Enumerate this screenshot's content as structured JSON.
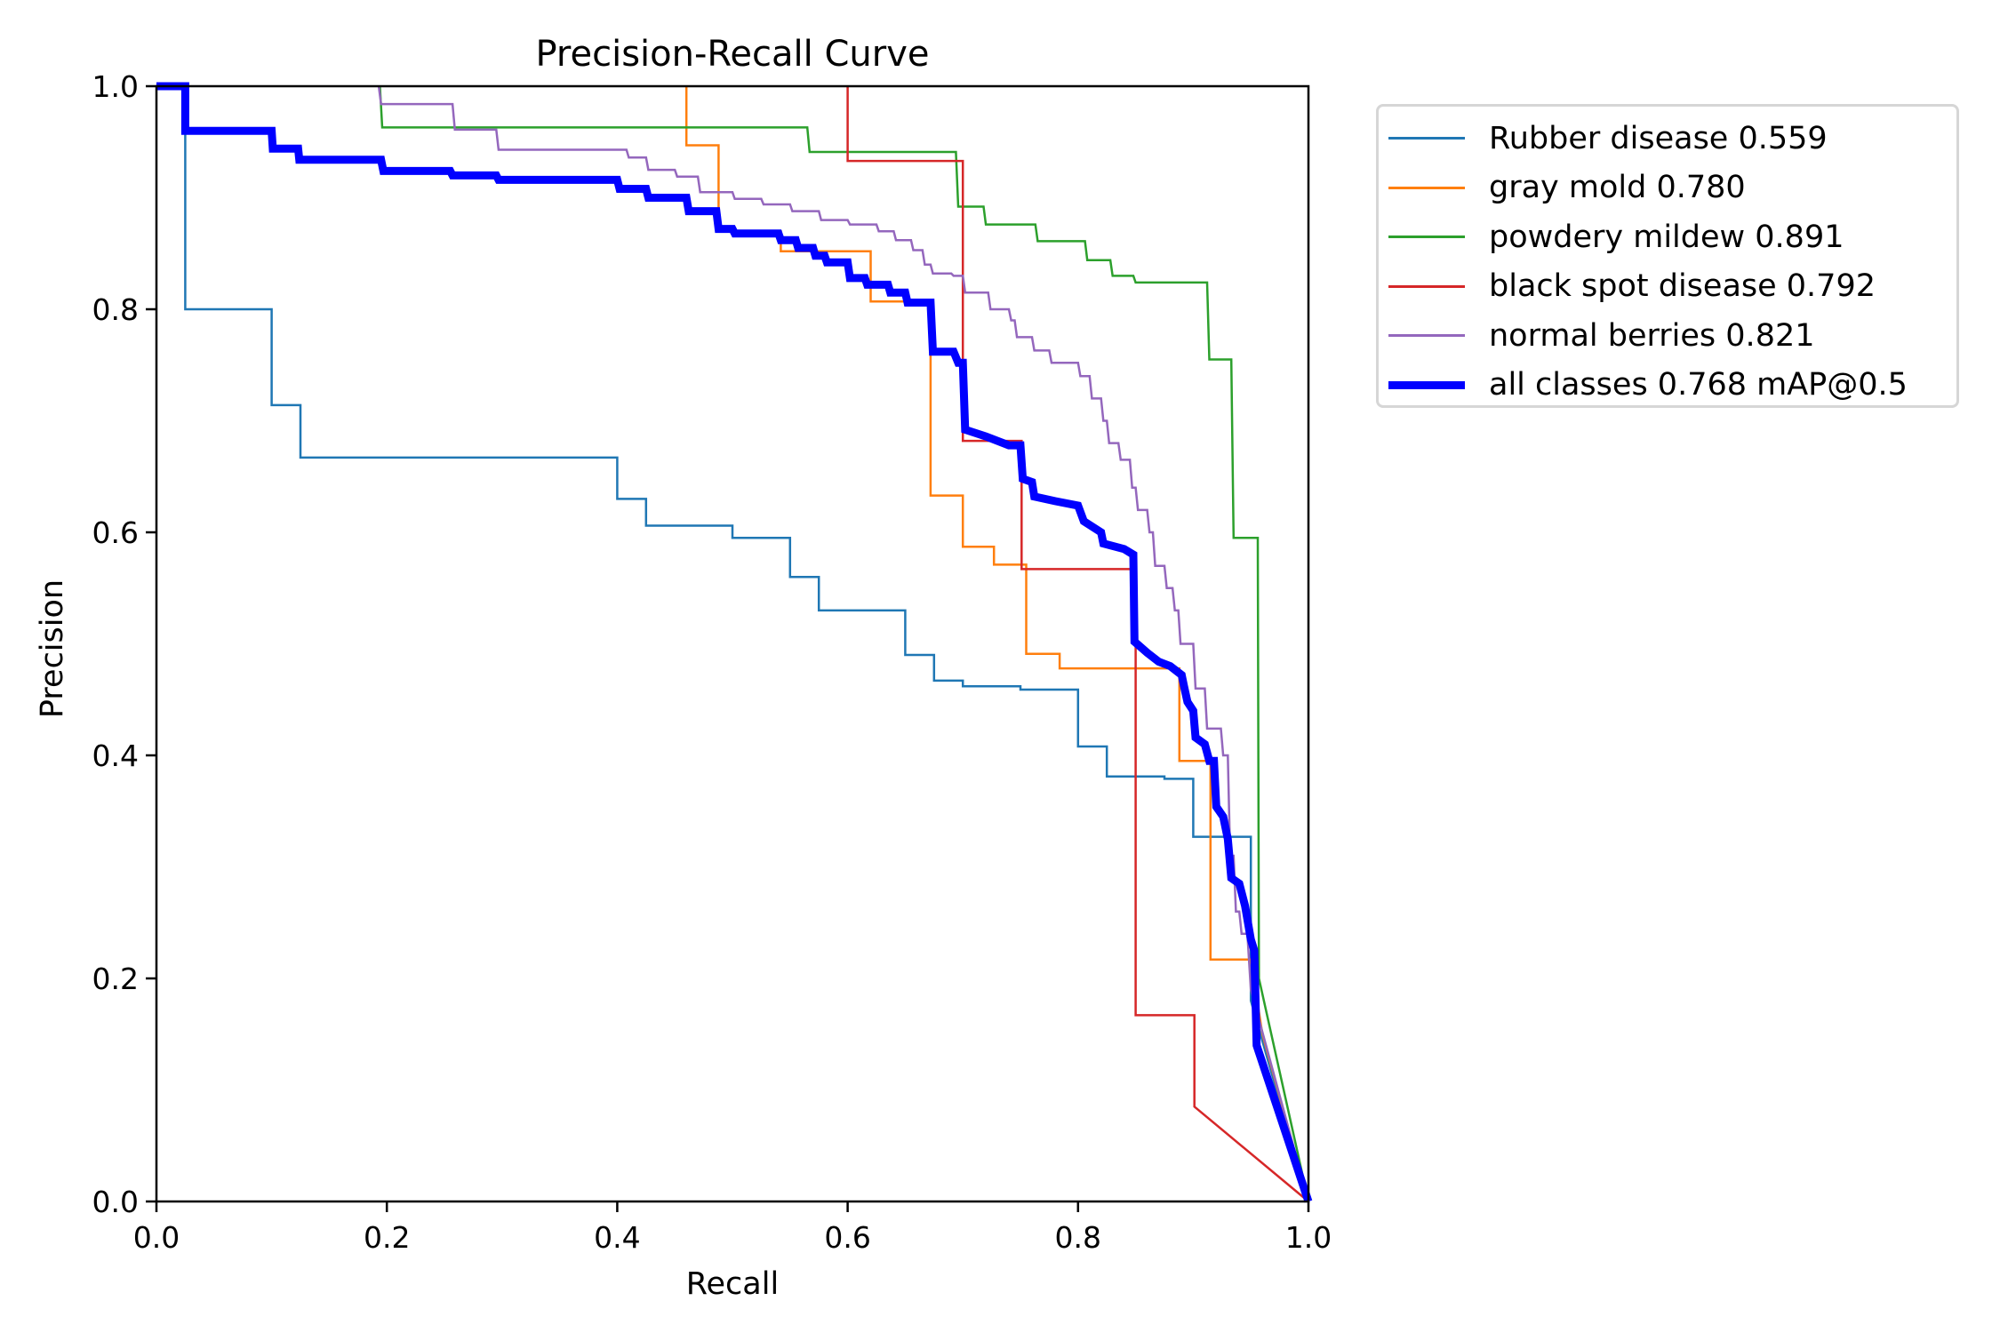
{
  "chart_data": {
    "type": "line",
    "title": "Precision-Recall Curve",
    "xlabel": "Recall",
    "ylabel": "Precision",
    "xlim": [
      0,
      1
    ],
    "ylim": [
      0,
      1
    ],
    "xticks": [
      "0.0",
      "0.2",
      "0.4",
      "0.6",
      "0.8",
      "1.0"
    ],
    "yticks": [
      "0.0",
      "0.2",
      "0.4",
      "0.6",
      "0.8",
      "1.0"
    ],
    "grid": false,
    "legend_position": "outside-top-right",
    "series": [
      {
        "name": "Rubber disease 0.559",
        "color": "#1f77b4",
        "width": "thin",
        "points": [
          [
            0,
            1
          ],
          [
            0.025,
            1
          ],
          [
            0.025,
            0.8
          ],
          [
            0.1,
            0.8
          ],
          [
            0.1,
            0.714
          ],
          [
            0.125,
            0.714
          ],
          [
            0.125,
            0.667
          ],
          [
            0.4,
            0.667
          ],
          [
            0.4,
            0.63
          ],
          [
            0.425,
            0.63
          ],
          [
            0.425,
            0.606
          ],
          [
            0.5,
            0.606
          ],
          [
            0.5,
            0.595
          ],
          [
            0.55,
            0.595
          ],
          [
            0.55,
            0.56
          ],
          [
            0.575,
            0.56
          ],
          [
            0.575,
            0.53
          ],
          [
            0.65,
            0.53
          ],
          [
            0.65,
            0.49
          ],
          [
            0.675,
            0.49
          ],
          [
            0.675,
            0.467
          ],
          [
            0.7,
            0.467
          ],
          [
            0.7,
            0.462
          ],
          [
            0.75,
            0.462
          ],
          [
            0.75,
            0.459
          ],
          [
            0.8,
            0.459
          ],
          [
            0.8,
            0.408
          ],
          [
            0.825,
            0.408
          ],
          [
            0.825,
            0.381
          ],
          [
            0.875,
            0.381
          ],
          [
            0.875,
            0.379
          ],
          [
            0.9,
            0.379
          ],
          [
            0.9,
            0.327
          ],
          [
            0.95,
            0.327
          ],
          [
            0.95,
            0.18
          ],
          [
            1,
            0
          ]
        ]
      },
      {
        "name": "gray mold 0.780",
        "color": "#ff7f0e",
        "width": "thin",
        "points": [
          [
            0.46,
            1
          ],
          [
            0.46,
            0.947
          ],
          [
            0.488,
            0.947
          ],
          [
            0.488,
            0.87
          ],
          [
            0.542,
            0.87
          ],
          [
            0.542,
            0.852
          ],
          [
            0.62,
            0.852
          ],
          [
            0.62,
            0.807
          ],
          [
            0.672,
            0.807
          ],
          [
            0.672,
            0.633
          ],
          [
            0.7,
            0.633
          ],
          [
            0.7,
            0.587
          ],
          [
            0.727,
            0.587
          ],
          [
            0.727,
            0.571
          ],
          [
            0.755,
            0.571
          ],
          [
            0.755,
            0.491
          ],
          [
            0.784,
            0.491
          ],
          [
            0.784,
            0.478
          ],
          [
            0.888,
            0.478
          ],
          [
            0.888,
            0.395
          ],
          [
            0.915,
            0.395
          ],
          [
            0.915,
            0.217
          ],
          [
            0.95,
            0.217
          ],
          [
            0.96,
            0.15
          ],
          [
            1,
            0
          ]
        ]
      },
      {
        "name": "powdery mildew 0.891",
        "color": "#2ca02c",
        "width": "thin",
        "points": [
          [
            0.194,
            1
          ],
          [
            0.196,
            0.963
          ],
          [
            0.565,
            0.963
          ],
          [
            0.567,
            0.941
          ],
          [
            0.694,
            0.941
          ],
          [
            0.696,
            0.892
          ],
          [
            0.718,
            0.892
          ],
          [
            0.72,
            0.876
          ],
          [
            0.763,
            0.876
          ],
          [
            0.765,
            0.861
          ],
          [
            0.806,
            0.861
          ],
          [
            0.808,
            0.844
          ],
          [
            0.828,
            0.844
          ],
          [
            0.83,
            0.83
          ],
          [
            0.848,
            0.83
          ],
          [
            0.85,
            0.824
          ],
          [
            0.912,
            0.824
          ],
          [
            0.914,
            0.755
          ],
          [
            0.933,
            0.755
          ],
          [
            0.935,
            0.595
          ],
          [
            0.956,
            0.595
          ],
          [
            0.957,
            0.2
          ],
          [
            1,
            0
          ]
        ]
      },
      {
        "name": "black spot disease 0.792",
        "color": "#d62728",
        "width": "thin",
        "points": [
          [
            0.6,
            1
          ],
          [
            0.6,
            0.933
          ],
          [
            0.7,
            0.933
          ],
          [
            0.7,
            0.682
          ],
          [
            0.751,
            0.682
          ],
          [
            0.751,
            0.567
          ],
          [
            0.85,
            0.567
          ],
          [
            0.85,
            0.167
          ],
          [
            0.901,
            0.167
          ],
          [
            0.901,
            0.085
          ],
          [
            1,
            0
          ]
        ]
      },
      {
        "name": "normal berries 0.821",
        "color": "#9467bd",
        "width": "thin",
        "points": [
          [
            0.193,
            1
          ],
          [
            0.195,
            0.984
          ],
          [
            0.257,
            0.984
          ],
          [
            0.259,
            0.961
          ],
          [
            0.295,
            0.961
          ],
          [
            0.297,
            0.943
          ],
          [
            0.408,
            0.943
          ],
          [
            0.41,
            0.936
          ],
          [
            0.425,
            0.936
          ],
          [
            0.427,
            0.925
          ],
          [
            0.45,
            0.925
          ],
          [
            0.452,
            0.919
          ],
          [
            0.47,
            0.919
          ],
          [
            0.472,
            0.905
          ],
          [
            0.5,
            0.905
          ],
          [
            0.502,
            0.899
          ],
          [
            0.525,
            0.899
          ],
          [
            0.527,
            0.894
          ],
          [
            0.55,
            0.894
          ],
          [
            0.552,
            0.888
          ],
          [
            0.575,
            0.888
          ],
          [
            0.577,
            0.88
          ],
          [
            0.6,
            0.88
          ],
          [
            0.602,
            0.876
          ],
          [
            0.625,
            0.876
          ],
          [
            0.627,
            0.87
          ],
          [
            0.64,
            0.87
          ],
          [
            0.642,
            0.862
          ],
          [
            0.655,
            0.862
          ],
          [
            0.657,
            0.853
          ],
          [
            0.665,
            0.853
          ],
          [
            0.667,
            0.84
          ],
          [
            0.672,
            0.84
          ],
          [
            0.674,
            0.832
          ],
          [
            0.69,
            0.832
          ],
          [
            0.692,
            0.83
          ],
          [
            0.7,
            0.83
          ],
          [
            0.702,
            0.815
          ],
          [
            0.722,
            0.815
          ],
          [
            0.724,
            0.8
          ],
          [
            0.74,
            0.8
          ],
          [
            0.742,
            0.79
          ],
          [
            0.745,
            0.79
          ],
          [
            0.747,
            0.775
          ],
          [
            0.76,
            0.775
          ],
          [
            0.762,
            0.763
          ],
          [
            0.775,
            0.763
          ],
          [
            0.777,
            0.752
          ],
          [
            0.8,
            0.752
          ],
          [
            0.802,
            0.74
          ],
          [
            0.81,
            0.74
          ],
          [
            0.812,
            0.72
          ],
          [
            0.82,
            0.72
          ],
          [
            0.822,
            0.7
          ],
          [
            0.825,
            0.7
          ],
          [
            0.827,
            0.68
          ],
          [
            0.835,
            0.68
          ],
          [
            0.837,
            0.665
          ],
          [
            0.845,
            0.665
          ],
          [
            0.847,
            0.64
          ],
          [
            0.85,
            0.64
          ],
          [
            0.852,
            0.62
          ],
          [
            0.86,
            0.62
          ],
          [
            0.862,
            0.6
          ],
          [
            0.865,
            0.6
          ],
          [
            0.867,
            0.57
          ],
          [
            0.875,
            0.57
          ],
          [
            0.877,
            0.55
          ],
          [
            0.882,
            0.55
          ],
          [
            0.884,
            0.53
          ],
          [
            0.887,
            0.53
          ],
          [
            0.889,
            0.5
          ],
          [
            0.9,
            0.5
          ],
          [
            0.902,
            0.46
          ],
          [
            0.91,
            0.46
          ],
          [
            0.912,
            0.424
          ],
          [
            0.924,
            0.424
          ],
          [
            0.926,
            0.4
          ],
          [
            0.93,
            0.4
          ],
          [
            0.932,
            0.31
          ],
          [
            0.935,
            0.31
          ],
          [
            0.937,
            0.26
          ],
          [
            0.94,
            0.26
          ],
          [
            0.942,
            0.24
          ],
          [
            0.947,
            0.24
          ],
          [
            0.95,
            0.19
          ],
          [
            1,
            0
          ]
        ]
      },
      {
        "name": "all classes 0.768 mAP@0.5",
        "color": "#0000ff",
        "width": "thick",
        "points": [
          [
            0,
            1
          ],
          [
            0.025,
            1
          ],
          [
            0.025,
            0.96
          ],
          [
            0.1,
            0.96
          ],
          [
            0.101,
            0.944
          ],
          [
            0.123,
            0.944
          ],
          [
            0.124,
            0.934
          ],
          [
            0.195,
            0.934
          ],
          [
            0.197,
            0.924
          ],
          [
            0.255,
            0.924
          ],
          [
            0.257,
            0.92
          ],
          [
            0.295,
            0.92
          ],
          [
            0.297,
            0.916
          ],
          [
            0.4,
            0.916
          ],
          [
            0.402,
            0.908
          ],
          [
            0.425,
            0.908
          ],
          [
            0.427,
            0.9
          ],
          [
            0.46,
            0.9
          ],
          [
            0.462,
            0.888
          ],
          [
            0.486,
            0.888
          ],
          [
            0.488,
            0.872
          ],
          [
            0.5,
            0.872
          ],
          [
            0.502,
            0.868
          ],
          [
            0.54,
            0.868
          ],
          [
            0.542,
            0.862
          ],
          [
            0.555,
            0.862
          ],
          [
            0.557,
            0.855
          ],
          [
            0.57,
            0.855
          ],
          [
            0.572,
            0.848
          ],
          [
            0.58,
            0.848
          ],
          [
            0.582,
            0.842
          ],
          [
            0.6,
            0.842
          ],
          [
            0.602,
            0.828
          ],
          [
            0.615,
            0.828
          ],
          [
            0.617,
            0.822
          ],
          [
            0.635,
            0.822
          ],
          [
            0.637,
            0.815
          ],
          [
            0.65,
            0.815
          ],
          [
            0.652,
            0.806
          ],
          [
            0.672,
            0.806
          ],
          [
            0.674,
            0.762
          ],
          [
            0.692,
            0.762
          ],
          [
            0.696,
            0.752
          ],
          [
            0.7,
            0.752
          ],
          [
            0.702,
            0.692
          ],
          [
            0.72,
            0.686
          ],
          [
            0.74,
            0.678
          ],
          [
            0.75,
            0.678
          ],
          [
            0.752,
            0.648
          ],
          [
            0.76,
            0.645
          ],
          [
            0.762,
            0.632
          ],
          [
            0.78,
            0.628
          ],
          [
            0.8,
            0.624
          ],
          [
            0.805,
            0.61
          ],
          [
            0.82,
            0.6
          ],
          [
            0.822,
            0.59
          ],
          [
            0.84,
            0.585
          ],
          [
            0.848,
            0.58
          ],
          [
            0.849,
            0.502
          ],
          [
            0.86,
            0.492
          ],
          [
            0.87,
            0.484
          ],
          [
            0.88,
            0.48
          ],
          [
            0.89,
            0.472
          ],
          [
            0.892,
            0.462
          ],
          [
            0.895,
            0.448
          ],
          [
            0.9,
            0.44
          ],
          [
            0.902,
            0.416
          ],
          [
            0.91,
            0.41
          ],
          [
            0.914,
            0.395
          ],
          [
            0.918,
            0.395
          ],
          [
            0.92,
            0.354
          ],
          [
            0.926,
            0.345
          ],
          [
            0.93,
            0.325
          ],
          [
            0.933,
            0.29
          ],
          [
            0.94,
            0.285
          ],
          [
            0.945,
            0.265
          ],
          [
            0.95,
            0.235
          ],
          [
            0.953,
            0.225
          ],
          [
            0.955,
            0.14
          ],
          [
            1,
            0
          ]
        ]
      }
    ]
  }
}
